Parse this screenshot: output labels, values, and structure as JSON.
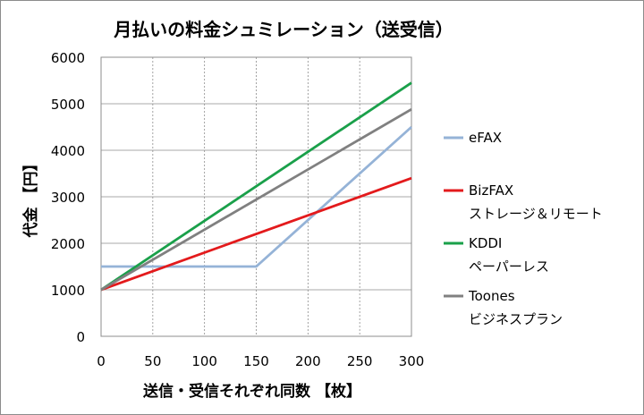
{
  "chart_data": {
    "type": "line",
    "title": "月払いの料金シュミレーション（送受信）",
    "xlabel": "送信・受信それぞれ同数 【枚】",
    "ylabel": "代金 【円】",
    "xlim": [
      0,
      300
    ],
    "ylim": [
      0,
      6000
    ],
    "x_ticks": [
      "0",
      "50",
      "100",
      "150",
      "200",
      "250",
      "300"
    ],
    "y_ticks": [
      "0",
      "1000",
      "2000",
      "3000",
      "4000",
      "5000",
      "6000"
    ],
    "grid": "vertical dashed + horizontal solid",
    "legend_position": "right",
    "series": [
      {
        "name": "eFAX",
        "color": "#95b3d7",
        "points": [
          [
            0,
            1500
          ],
          [
            150,
            1500
          ],
          [
            300,
            4500
          ]
        ]
      },
      {
        "name": "BizFAX\nストレージ＆リモート",
        "color": "#e31a1c",
        "points": [
          [
            0,
            1000
          ],
          [
            300,
            3400
          ]
        ]
      },
      {
        "name": " KDDI\nペーパーレス",
        "color": "#1aa04a",
        "points": [
          [
            0,
            1000
          ],
          [
            300,
            5450
          ]
        ]
      },
      {
        "name": "Toones\nビジネスプラン",
        "color": "#808080",
        "points": [
          [
            0,
            1000
          ],
          [
            300,
            4880
          ]
        ]
      }
    ]
  }
}
